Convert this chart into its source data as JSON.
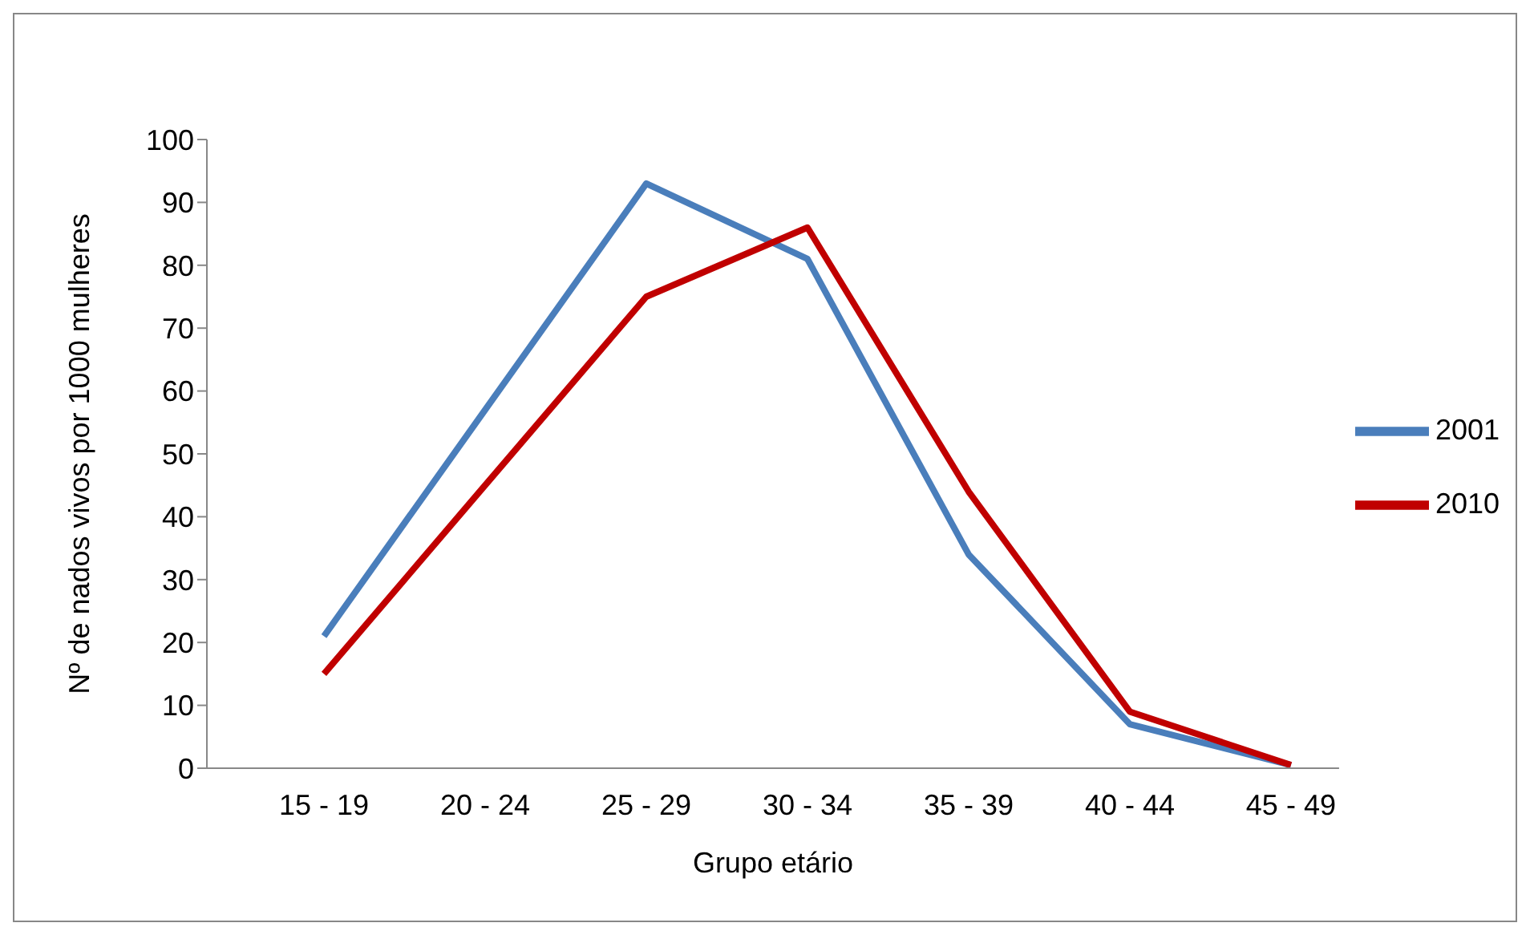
{
  "chart_data": {
    "type": "line",
    "xlabel": "Grupo etário",
    "ylabel": "Nº de nados vivos por 1000 mulheres",
    "categories": [
      "15 - 19",
      "20 - 24",
      "25 - 29",
      "30 - 34",
      "35 - 39",
      "40 - 44",
      "45 - 49"
    ],
    "series": [
      {
        "name": "2001",
        "color": "#4a7ebb",
        "values": [
          21,
          57,
          93,
          81,
          34,
          7,
          0.5
        ]
      },
      {
        "name": "2010",
        "color": "#c00000",
        "values": [
          15,
          45,
          75,
          86,
          44,
          9,
          0.5
        ]
      }
    ],
    "ylim": [
      0,
      100
    ],
    "yticks": [
      0,
      10,
      20,
      30,
      40,
      50,
      60,
      70,
      80,
      90,
      100
    ],
    "grid": false,
    "legend": "right",
    "marker": "none",
    "line_style": "solid"
  }
}
